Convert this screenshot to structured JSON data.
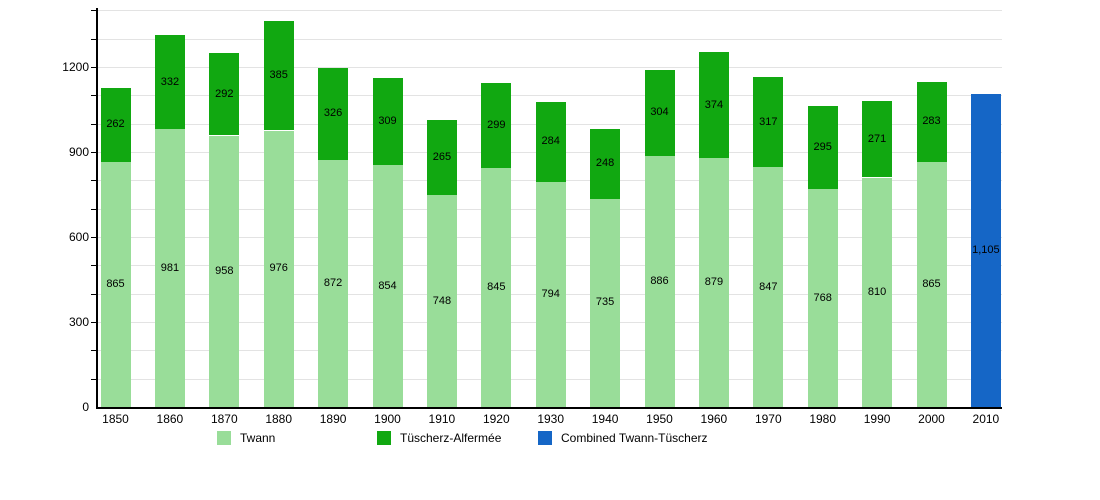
{
  "chart_data": {
    "type": "bar",
    "stacked": true,
    "title": "",
    "xlabel": "",
    "ylabel": "",
    "grid": true,
    "legend_position": "bottom",
    "ylim": [
      0,
      1400
    ],
    "grid_step": 100,
    "ytick_labels": [
      "0",
      "300",
      "600",
      "900",
      "1200"
    ],
    "ytick_values": [
      0,
      300,
      600,
      900,
      1200
    ],
    "categories": [
      "1850",
      "1860",
      "1870",
      "1880",
      "1890",
      "1900",
      "1910",
      "1920",
      "1930",
      "1940",
      "1950",
      "1960",
      "1970",
      "1980",
      "1990",
      "2000",
      "2010"
    ],
    "series": [
      {
        "name": "Twann",
        "color": "#99DD99",
        "values": [
          865,
          981,
          958,
          976,
          872,
          854,
          748,
          845,
          794,
          735,
          886,
          879,
          847,
          768,
          810,
          865,
          null
        ]
      },
      {
        "name": "Tüscherz-Alfermée",
        "color": "#11A811",
        "values": [
          262,
          332,
          292,
          385,
          326,
          309,
          265,
          299,
          284,
          248,
          304,
          374,
          317,
          295,
          271,
          283,
          null
        ]
      },
      {
        "name": "Combined Twann-Tüscherz",
        "color": "#1566C6",
        "values": [
          null,
          null,
          null,
          null,
          null,
          null,
          null,
          null,
          null,
          null,
          null,
          null,
          null,
          null,
          null,
          null,
          1105
        ]
      }
    ],
    "bar_value_label_example": "1,105",
    "colors": {
      "background": "#FFFFFF",
      "gridline": "#E3E3E3",
      "axis": "#000000",
      "text": "#000000"
    }
  }
}
